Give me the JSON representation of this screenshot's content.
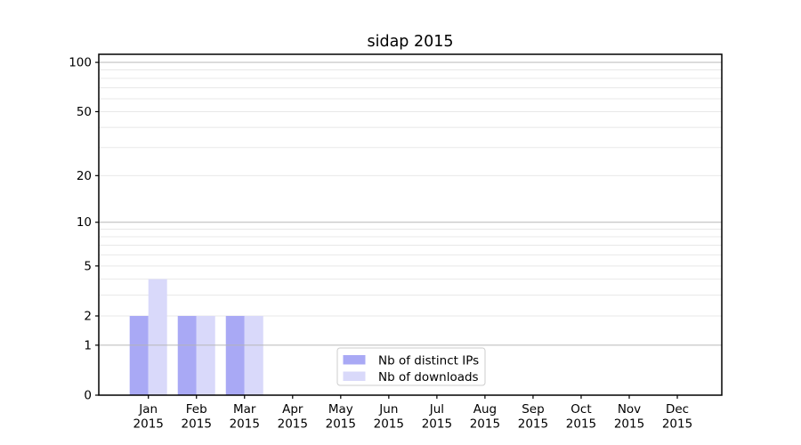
{
  "title": "sidap 2015",
  "chart_data": {
    "type": "bar",
    "title": "sidap 2015",
    "y_scale": "log(1+y), symlog-like with 0 baseline",
    "categories": [
      "Jan",
      "Feb",
      "Mar",
      "Apr",
      "May",
      "Jun",
      "Jul",
      "Aug",
      "Sep",
      "Oct",
      "Nov",
      "Dec"
    ],
    "x_year_label": "2015",
    "series": [
      {
        "name": "Nb of distinct IPs",
        "color": "#a9a9f5",
        "values": [
          2,
          2,
          2,
          0,
          0,
          0,
          0,
          0,
          0,
          0,
          0,
          0
        ]
      },
      {
        "name": "Nb of downloads",
        "color": "#d9d9fa",
        "values": [
          4,
          2,
          2,
          0,
          0,
          0,
          0,
          0,
          0,
          0,
          0,
          0
        ]
      }
    ],
    "y_axis": {
      "tick_values": [
        0,
        1,
        2,
        5,
        10,
        20,
        50,
        100
      ],
      "tick_labels": [
        "0",
        "1",
        "2",
        "5",
        "10",
        "20",
        "50",
        "100"
      ],
      "top_value": 112,
      "major_gridlines": [
        1,
        10,
        100
      ],
      "minor_gridlines": [
        2,
        3,
        4,
        5,
        6,
        7,
        8,
        9,
        20,
        30,
        40,
        50,
        60,
        70,
        80,
        90
      ]
    },
    "ylim": [
      0,
      112
    ],
    "grid": "horizontal only",
    "legend": {
      "entries": [
        "Nb of distinct IPs",
        "Nb of downloads"
      ],
      "position": "lower center, inside plot"
    }
  },
  "colors": {
    "background": "#ffffff",
    "bar_distinct_ips": "#a9a9f5",
    "bar_downloads": "#d9d9fa",
    "major_grid": "#b5b5b5",
    "minor_grid": "#e8e8e8",
    "axis": "#000000",
    "legend_border": "#cdcdcd",
    "text": "#000000"
  }
}
